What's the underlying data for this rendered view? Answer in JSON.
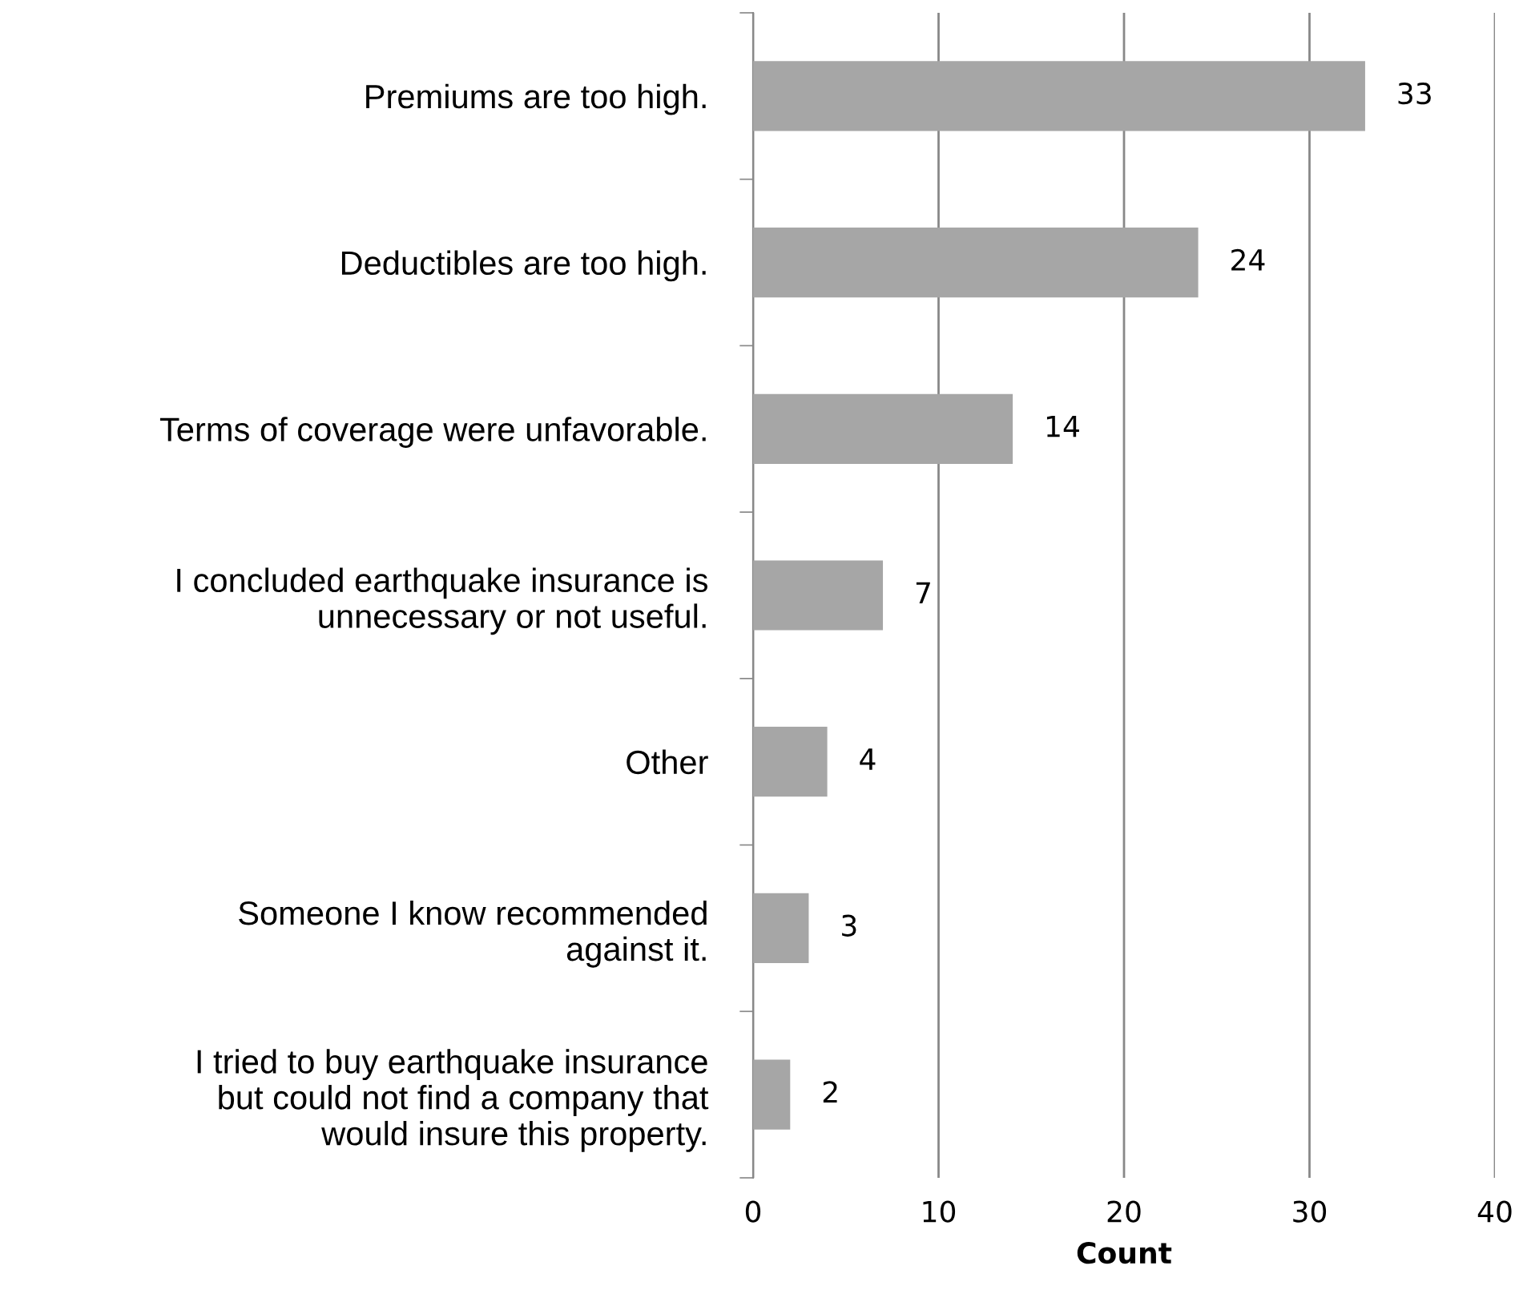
{
  "chart_data": {
    "type": "bar",
    "orientation": "horizontal",
    "xlabel": "Count",
    "categories": [
      "Premiums are too high.",
      "Deductibles are too high.",
      "Terms of coverage were unfavorable.",
      "I concluded earthquake insurance is\nunnecessary or not useful.",
      "Other",
      "Someone I know recommended\nagainst it.",
      "I tried to buy earthquake insurance\nbut could not find a company that\nwould insure this property."
    ],
    "values": [
      33,
      24,
      14,
      7,
      4,
      3,
      2
    ],
    "color": "#a6a6a6",
    "xlim": [
      0,
      40
    ],
    "xticks": [
      0,
      10,
      20,
      30,
      40
    ],
    "grid": "x",
    "data_labels": true,
    "legend": false
  }
}
